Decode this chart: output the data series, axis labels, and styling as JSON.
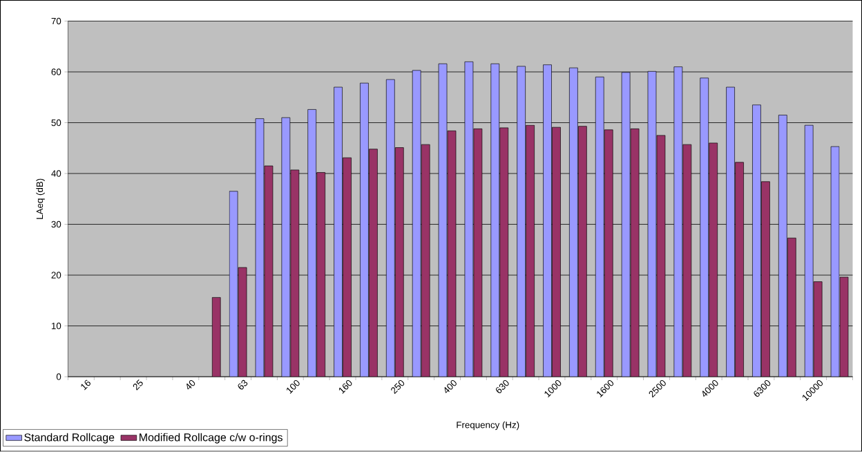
{
  "chart_data": {
    "type": "bar",
    "xlabel": "Frequency (Hz)",
    "ylabel": "LAeq (dB)",
    "categories": [
      "16",
      null,
      "25",
      null,
      "40",
      null,
      "63",
      null,
      "100",
      null,
      "160",
      null,
      "250",
      null,
      "400",
      null,
      "630",
      null,
      "1000",
      null,
      "1600",
      null,
      "2500",
      null,
      "4000",
      null,
      "6300",
      null,
      "10000",
      null
    ],
    "series": [
      {
        "name": "Standard Rollcage",
        "color": "#9999ff",
        "values": [
          null,
          null,
          null,
          null,
          null,
          null,
          36.5,
          50.8,
          51,
          52.6,
          57,
          57.8,
          58.5,
          60.3,
          61.6,
          62,
          61.6,
          61.1,
          61.4,
          60.8,
          59,
          59.9,
          60.1,
          61,
          58.8,
          57,
          53.5,
          51.5,
          49.5,
          45.3
        ]
      },
      {
        "name": "Modified Rollcage c/w o-rings",
        "color": "#993366",
        "values": [
          null,
          null,
          null,
          null,
          null,
          15.6,
          21.5,
          41.5,
          40.7,
          40.2,
          43.1,
          44.8,
          45.1,
          45.7,
          48.4,
          48.8,
          49,
          49.5,
          49.1,
          49.3,
          48.6,
          48.8,
          47.5,
          45.7,
          46,
          42.2,
          38.4,
          27.3,
          18.7,
          19.6
        ]
      }
    ],
    "ylim": [
      0,
      70
    ],
    "yticks": [
      0,
      10,
      20,
      30,
      40,
      50,
      60,
      70
    ],
    "grid": "y",
    "legend": "bottom left"
  }
}
